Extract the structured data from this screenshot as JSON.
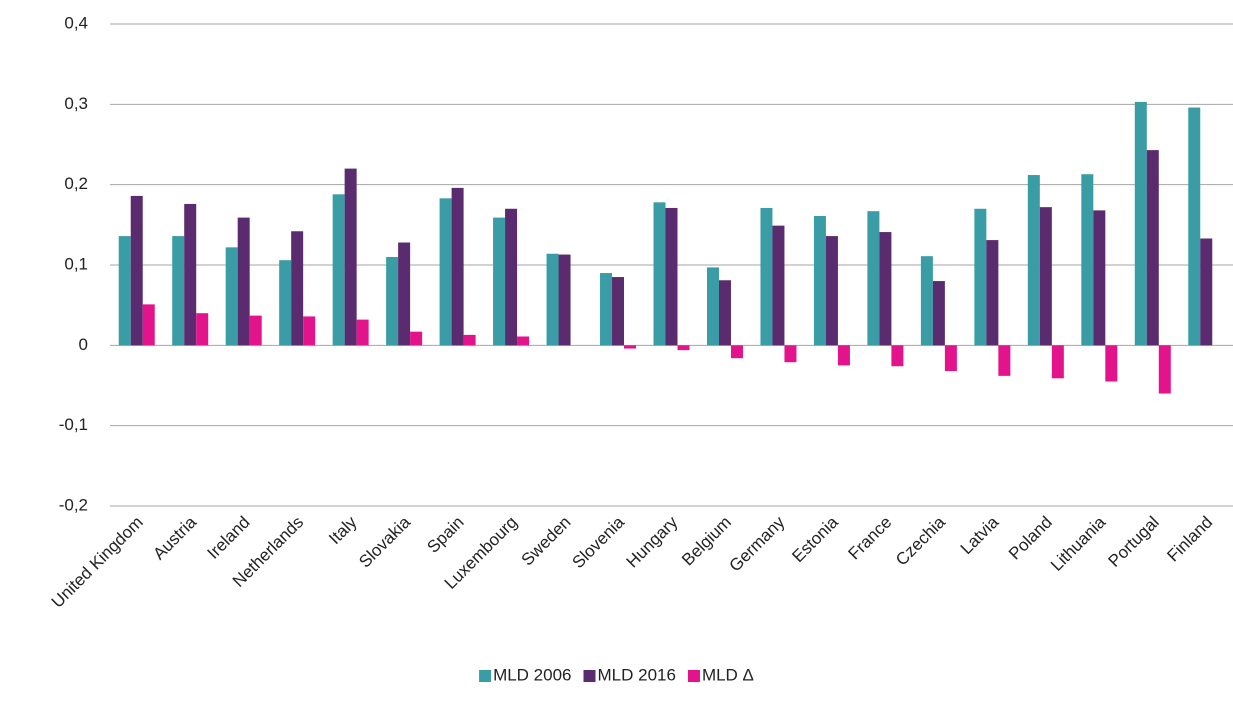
{
  "chart_data": {
    "type": "bar",
    "categories": [
      "United Kingdom",
      "Austria",
      "Ireland",
      "Netherlands",
      "Italy",
      "Slovakia",
      "Spain",
      "Luxembourg",
      "Sweden",
      "Slovenia",
      "Hungary",
      "Belgium",
      "Germany",
      "Estonia",
      "France",
      "Czechia",
      "Latvia",
      "Poland",
      "Lithuania",
      "Portugal",
      "Finland"
    ],
    "series": [
      {
        "name": "MLD 2006",
        "color": "#3a9da6",
        "values": [
          0.136,
          0.136,
          0.122,
          0.106,
          0.188,
          0.11,
          0.183,
          0.159,
          0.114,
          0.09,
          0.178,
          0.097,
          0.171,
          0.161,
          0.167,
          0.111,
          0.17,
          0.212,
          0.213,
          0.303,
          0.296
        ]
      },
      {
        "name": "MLD 2016",
        "color": "#5a2b6e",
        "values": [
          0.186,
          0.176,
          0.159,
          0.142,
          0.22,
          0.128,
          0.196,
          0.17,
          0.113,
          0.085,
          0.171,
          0.081,
          0.149,
          0.136,
          0.141,
          0.08,
          0.131,
          0.172,
          0.168,
          0.243,
          0.133
        ]
      },
      {
        "name": "MLD Δ",
        "color": "#e3148b",
        "values": [
          0.051,
          0.04,
          0.037,
          0.036,
          0.032,
          0.017,
          0.013,
          0.011,
          0,
          -0.004,
          -0.006,
          -0.016,
          -0.021,
          -0.025,
          -0.026,
          -0.032,
          -0.038,
          -0.041,
          -0.045,
          -0.06,
          null
        ]
      }
    ],
    "ylim": [
      -0.2,
      0.4
    ],
    "yticks": [
      {
        "value": -0.2,
        "label": "-0,2"
      },
      {
        "value": -0.1,
        "label": "-0,1"
      },
      0,
      {
        "value": 0.1,
        "label": "0,1"
      },
      {
        "value": 0.2,
        "label": "0,2"
      },
      {
        "value": 0.3,
        "label": "0,3"
      },
      {
        "value": 0.4,
        "label": "0,4"
      }
    ],
    "grid": true,
    "legend": "bottom"
  }
}
